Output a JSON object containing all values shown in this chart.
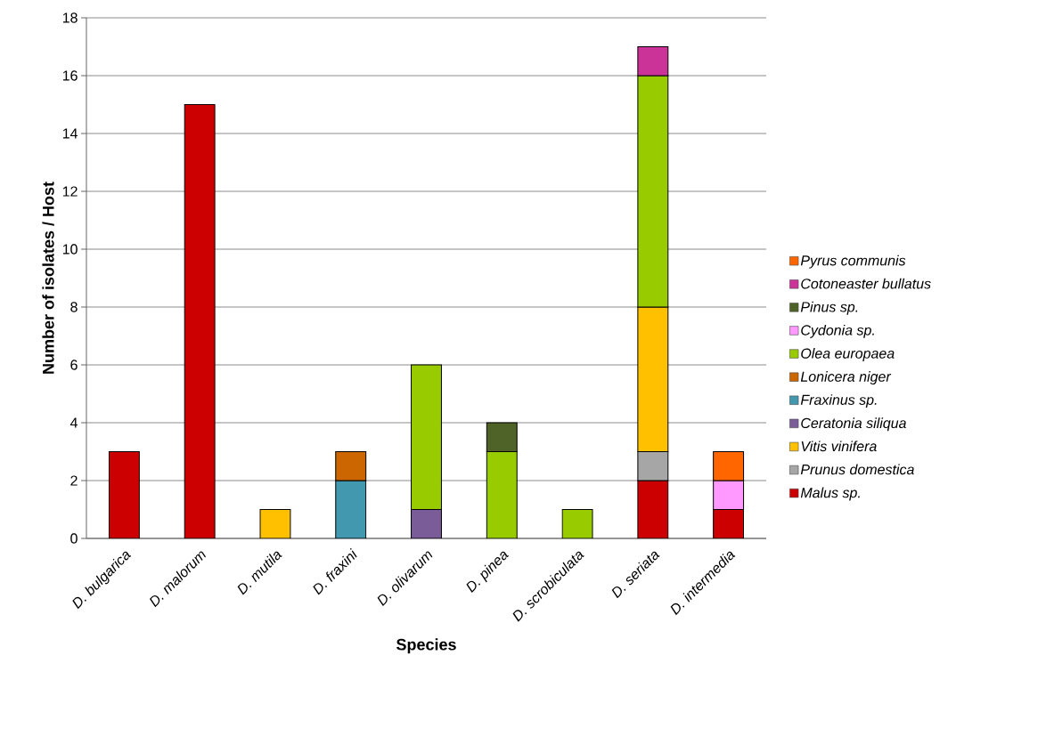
{
  "chart_data": {
    "type": "bar",
    "stacked": true,
    "xlabel": "Species",
    "ylabel": "Number of isolates / Host",
    "categories": [
      "D. bulgarica",
      "D. malorum",
      "D. mutila",
      "D. fraxini",
      "D. olivarum",
      "D. pinea",
      "D. scrobiculata",
      "D. seriata",
      "D. intermedia"
    ],
    "series": [
      {
        "name": "Malus sp.",
        "color": "#cc0000",
        "values": [
          3,
          15,
          null,
          null,
          null,
          null,
          null,
          2,
          1
        ]
      },
      {
        "name": "Prunus domestica",
        "color": "#a6a6a6",
        "values": [
          null,
          null,
          null,
          null,
          null,
          null,
          null,
          1,
          null
        ]
      },
      {
        "name": "Vitis vinifera",
        "color": "#ffc000",
        "values": [
          null,
          null,
          1,
          null,
          null,
          null,
          null,
          5,
          null
        ]
      },
      {
        "name": "Ceratonia siliqua",
        "color": "#7a5c99",
        "values": [
          null,
          null,
          null,
          null,
          1,
          null,
          null,
          null,
          null
        ]
      },
      {
        "name": "Fraxinus sp.",
        "color": "#4198af",
        "values": [
          null,
          null,
          null,
          2,
          null,
          null,
          null,
          null,
          null
        ]
      },
      {
        "name": "Lonicera niger",
        "color": "#cc6600",
        "values": [
          null,
          null,
          null,
          1,
          null,
          null,
          null,
          null,
          null
        ]
      },
      {
        "name": "Olea europaea",
        "color": "#99cc00",
        "values": [
          null,
          null,
          null,
          null,
          5,
          3,
          1,
          8,
          null
        ]
      },
      {
        "name": "Cydonia sp.",
        "color": "#ff99ff",
        "values": [
          null,
          null,
          null,
          null,
          null,
          null,
          null,
          null,
          1
        ]
      },
      {
        "name": "Pinus sp.",
        "color": "#4f6228",
        "values": [
          null,
          null,
          null,
          null,
          null,
          1,
          null,
          null,
          null
        ]
      },
      {
        "name": "Cotoneaster bullatus",
        "color": "#cc3399",
        "values": [
          null,
          null,
          null,
          null,
          null,
          null,
          null,
          1,
          null
        ]
      },
      {
        "name": "Pyrus communis",
        "color": "#ff6600",
        "values": [
          null,
          null,
          null,
          null,
          null,
          null,
          null,
          null,
          1
        ]
      }
    ],
    "ylim": [
      0,
      18
    ],
    "yticks": [
      0,
      2,
      4,
      6,
      8,
      10,
      12,
      14,
      16,
      18
    ],
    "grid": "y",
    "legend": "right"
  }
}
